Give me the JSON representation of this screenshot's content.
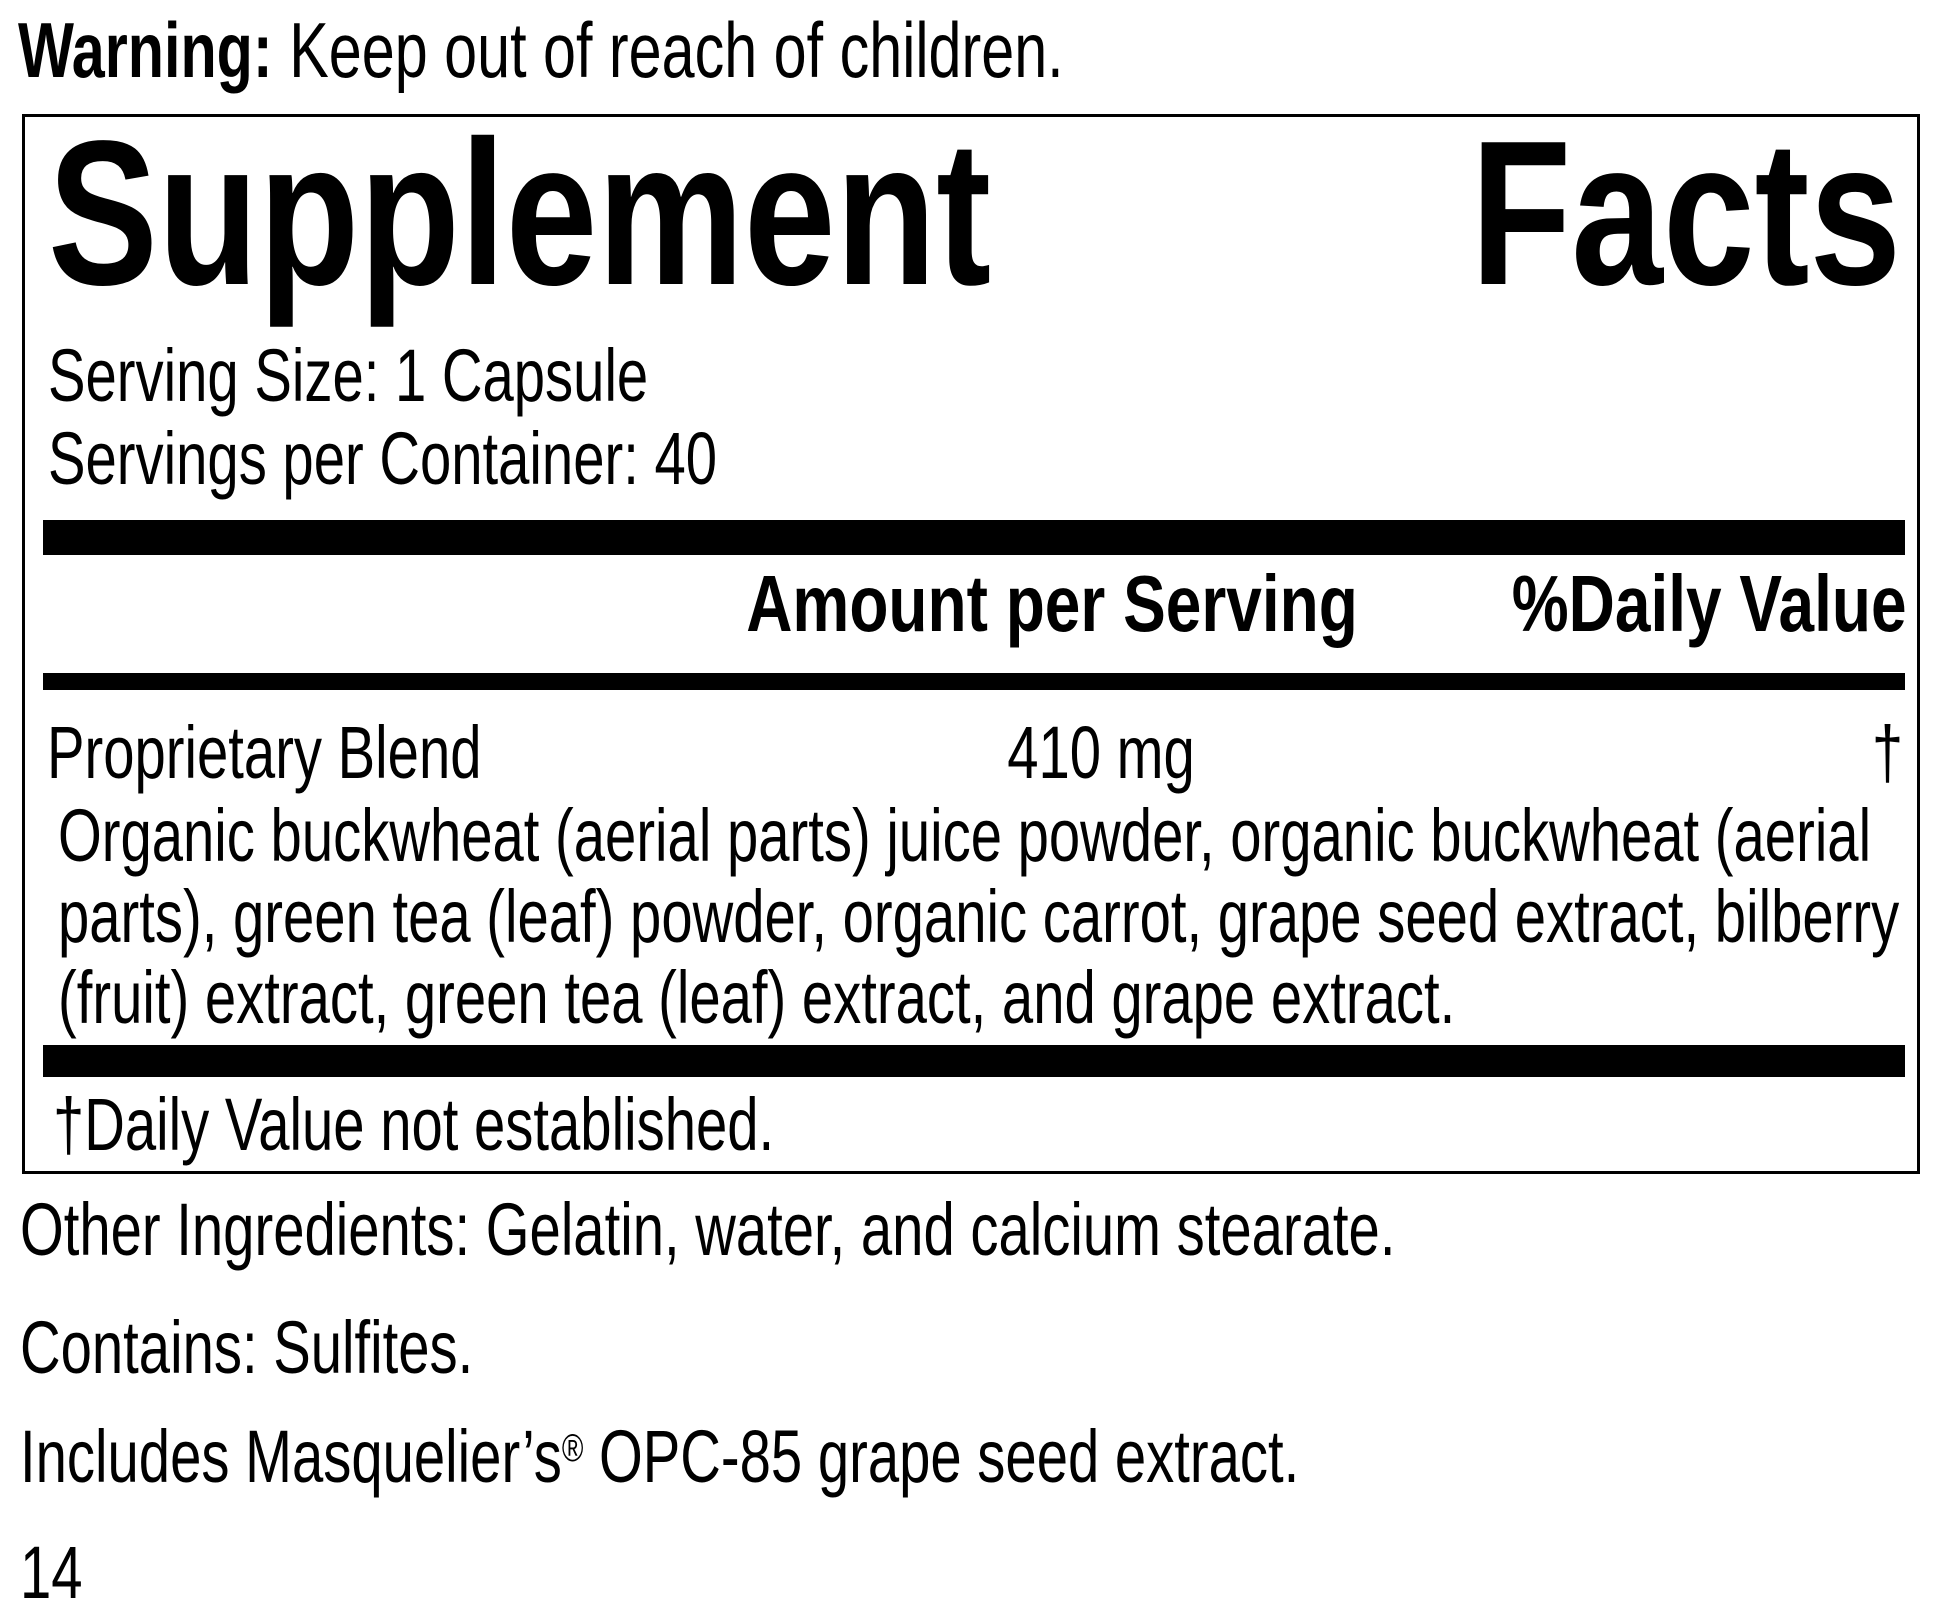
{
  "colors": {
    "text": "#000000",
    "background": "#ffffff",
    "bar": "#000000"
  },
  "warning": {
    "label": "Warning:",
    "text": "Keep out of reach of children."
  },
  "panel": {
    "title": {
      "word1": "Supplement",
      "word2": "Facts"
    },
    "serving_size": "Serving Size: 1 Capsule",
    "servings_per_container": "Servings per Container: 40",
    "columns": {
      "amount": "Amount per Serving",
      "daily_value": "%Daily Value"
    },
    "blend": {
      "name": "Proprietary Blend",
      "amount": "410 mg",
      "daily_value": "†",
      "description_lines": [
        "Organic buckwheat (aerial parts) juice powder, organic buckwheat (aerial",
        "parts), green tea (leaf) powder, organic carrot, grape seed extract, bilberry",
        "(fruit) extract, green tea (leaf) extract, and grape extract."
      ]
    },
    "footnote": "†Daily Value not established."
  },
  "other_ingredients": "Other Ingredients: Gelatin, water, and calcium stearate.",
  "contains": "Contains: Sulfites.",
  "includes": {
    "prefix": "Includes Masquelier’s",
    "registered_mark": "®",
    "suffix": " OPC-85 grape seed extract."
  },
  "page_number": "14"
}
